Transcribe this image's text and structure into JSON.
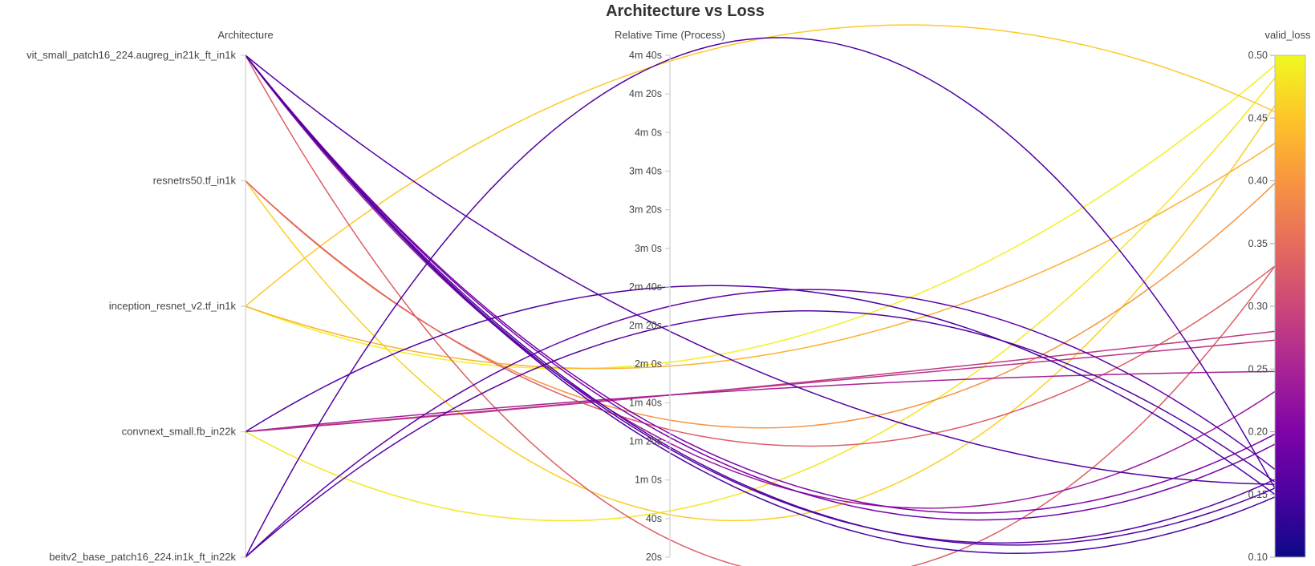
{
  "chart_data": {
    "type": "parallel_coordinates",
    "title": "Architecture vs Loss",
    "axes": [
      {
        "name": "Architecture",
        "kind": "categorical",
        "categories": [
          "vit_small_patch16_224.augreg_in21k_ft_in1k",
          "resnetrs50.tf_in1k",
          "inception_resnet_v2.tf_in1k",
          "convnext_small.fb_in22k",
          "beitv2_base_patch16_224.in1k_ft_in22k"
        ]
      },
      {
        "name": "Relative Time (Process)",
        "kind": "time_seconds",
        "ticks": [
          {
            "value": 20,
            "label": "20s"
          },
          {
            "value": 40,
            "label": "40s"
          },
          {
            "value": 60,
            "label": "1m 0s"
          },
          {
            "value": 80,
            "label": "1m 20s"
          },
          {
            "value": 100,
            "label": "1m 40s"
          },
          {
            "value": 120,
            "label": "2m 0s"
          },
          {
            "value": 140,
            "label": "2m 20s"
          },
          {
            "value": 160,
            "label": "2m 40s"
          },
          {
            "value": 180,
            "label": "3m 0s"
          },
          {
            "value": 200,
            "label": "3m 20s"
          },
          {
            "value": 220,
            "label": "3m 40s"
          },
          {
            "value": 240,
            "label": "4m 0s"
          },
          {
            "value": 260,
            "label": "4m 20s"
          },
          {
            "value": 280,
            "label": "4m 40s"
          }
        ],
        "range": [
          20,
          280
        ]
      },
      {
        "name": "valid_loss",
        "kind": "numeric",
        "ticks": [
          {
            "value": 0.1,
            "label": "0.10"
          },
          {
            "value": 0.15,
            "label": "0.15"
          },
          {
            "value": 0.2,
            "label": "0.20"
          },
          {
            "value": 0.25,
            "label": "0.25"
          },
          {
            "value": 0.3,
            "label": "0.30"
          },
          {
            "value": 0.35,
            "label": "0.35"
          },
          {
            "value": 0.4,
            "label": "0.40"
          },
          {
            "value": 0.45,
            "label": "0.45"
          },
          {
            "value": 0.5,
            "label": "0.50"
          }
        ],
        "range": [
          0.1,
          0.5
        ],
        "colorscale": "plasma"
      }
    ],
    "runs": [
      {
        "arch": "vit_small_patch16_224.augreg_in21k_ft_in1k",
        "time": 77,
        "loss": 0.155
      },
      {
        "arch": "vit_small_patch16_224.augreg_in21k_ft_in1k",
        "time": 76,
        "loss": 0.162
      },
      {
        "arch": "vit_small_patch16_224.augreg_in21k_ft_in1k",
        "time": 74,
        "loss": 0.148
      },
      {
        "arch": "vit_small_patch16_224.augreg_in21k_ft_in1k",
        "time": 82,
        "loss": 0.19
      },
      {
        "arch": "vit_small_patch16_224.augreg_in21k_ft_in1k",
        "time": 84,
        "loss": 0.198
      },
      {
        "arch": "vit_small_patch16_224.augreg_in21k_ft_in1k",
        "time": 79,
        "loss": 0.232
      },
      {
        "arch": "vit_small_patch16_224.augreg_in21k_ft_in1k",
        "time": 137,
        "loss": 0.158
      },
      {
        "arch": "vit_small_patch16_224.augreg_in21k_ft_in1k",
        "time": 29,
        "loss": 0.332
      },
      {
        "arch": "resnetrs50.tf_in1k",
        "time": 86,
        "loss": 0.332
      },
      {
        "arch": "resnetrs50.tf_in1k",
        "time": 91,
        "loss": 0.398
      },
      {
        "arch": "resnetrs50.tf_in1k",
        "time": 42,
        "loss": 0.46
      },
      {
        "arch": "inception_resnet_v2.tf_in1k",
        "time": 121,
        "loss": 0.492
      },
      {
        "arch": "inception_resnet_v2.tf_in1k",
        "time": 119,
        "loss": 0.43
      },
      {
        "arch": "inception_resnet_v2.tf_in1k",
        "time": 277,
        "loss": 0.455
      },
      {
        "arch": "convnext_small.fb_in22k",
        "time": 104,
        "loss": 0.28
      },
      {
        "arch": "convnext_small.fb_in22k",
        "time": 104,
        "loss": 0.273
      },
      {
        "arch": "convnext_small.fb_in22k",
        "time": 104,
        "loss": 0.248
      },
      {
        "arch": "convnext_small.fb_in22k",
        "time": 160,
        "loss": 0.15
      },
      {
        "arch": "convnext_small.fb_in22k",
        "time": 44,
        "loss": 0.482
      },
      {
        "arch": "beitv2_base_patch16_224.in1k_ft_in22k",
        "time": 150,
        "loss": 0.17
      },
      {
        "arch": "beitv2_base_patch16_224.in1k_ft_in22k",
        "time": 140,
        "loss": 0.16
      },
      {
        "arch": "beitv2_base_patch16_224.in1k_ft_in22k",
        "time": 278,
        "loss": 0.155
      }
    ],
    "grid": false,
    "legend": "colorbar-right"
  }
}
